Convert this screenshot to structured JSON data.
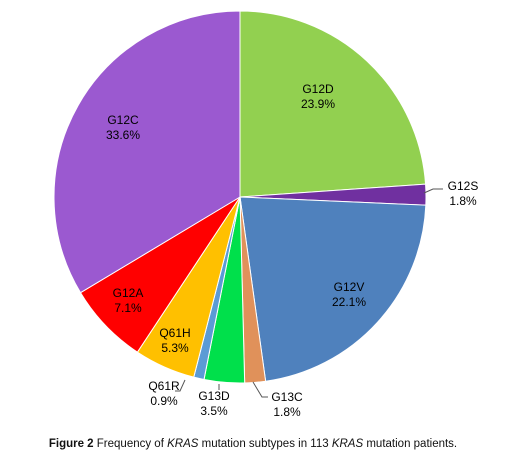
{
  "chart_data": {
    "type": "pie",
    "title": "",
    "unit": "%",
    "start_angle_deg": 0,
    "direction": "clockwise",
    "slices": [
      {
        "label": "G12D",
        "value": 23.9,
        "value_label": "23.9%",
        "color": "#92d050"
      },
      {
        "label": "G12S",
        "value": 1.8,
        "value_label": "1.8%",
        "color": "#7030a0"
      },
      {
        "label": "G12V",
        "value": 22.1,
        "value_label": "22.1%",
        "color": "#4f81bd"
      },
      {
        "label": "G13C",
        "value": 1.8,
        "value_label": "1.8%",
        "color": "#e0915a"
      },
      {
        "label": "G13D",
        "value": 3.5,
        "value_label": "3.5%",
        "color": "#00e04b"
      },
      {
        "label": "Q61R",
        "value": 0.9,
        "value_label": "0.9%",
        "color": "#5b9bd5"
      },
      {
        "label": "Q61H",
        "value": 5.3,
        "value_label": "5.3%",
        "color": "#ffc000"
      },
      {
        "label": "G12A",
        "value": 7.1,
        "value_label": "7.1%",
        "color": "#ff0000"
      },
      {
        "label": "G12C",
        "value": 33.6,
        "value_label": "33.6%",
        "color": "#9b59d0"
      }
    ]
  },
  "caption": {
    "figure_label": "Figure 2",
    "text_1": " Frequency of ",
    "gene_1": "KRAS",
    "text_2": " mutation subtypes in 113 ",
    "gene_2": "KRAS",
    "text_3": " mutation patients."
  }
}
